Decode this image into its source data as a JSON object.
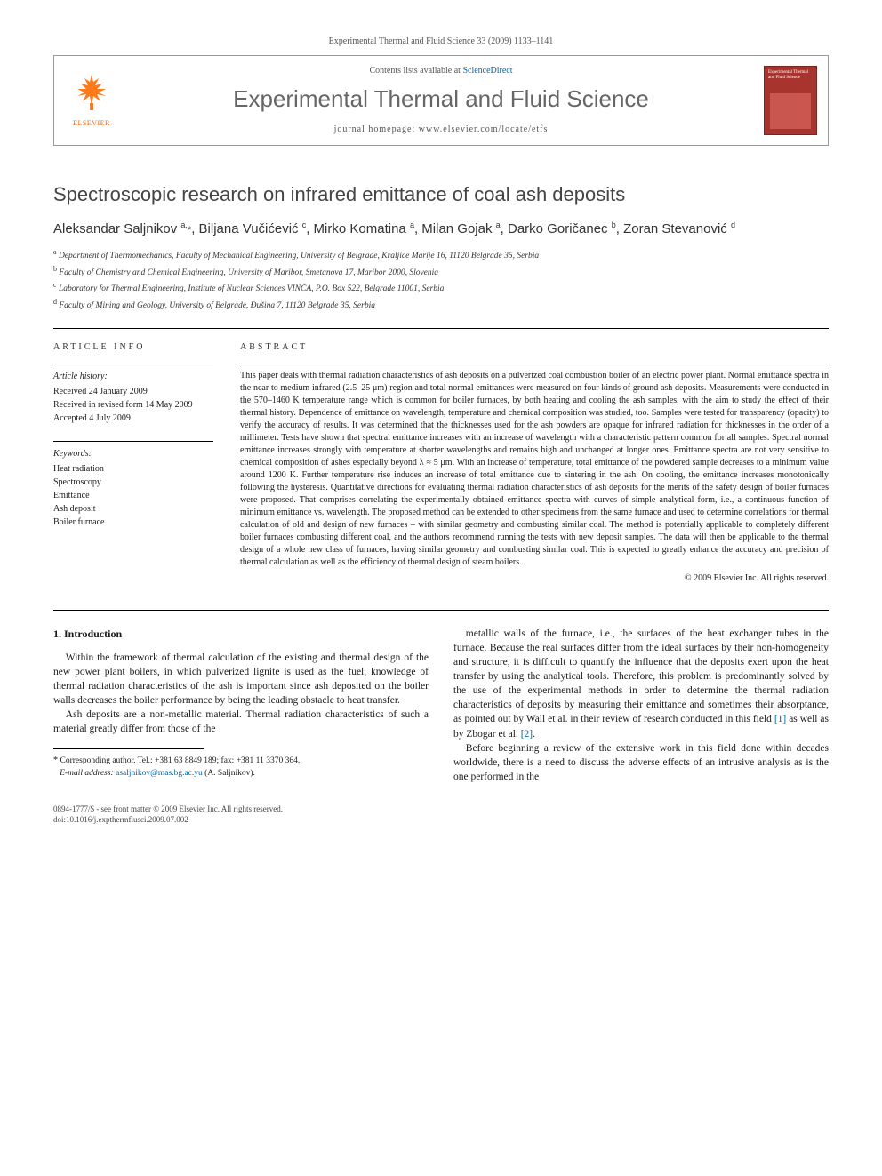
{
  "header": {
    "citation": "Experimental Thermal and Fluid Science 33 (2009) 1133–1141",
    "contents_prefix": "Contents lists available at ",
    "contents_link": "ScienceDirect",
    "journal_title": "Experimental Thermal and Fluid Science",
    "homepage_prefix": "journal homepage: ",
    "homepage_url": "www.elsevier.com/locate/etfs",
    "publisher_label": "ELSEVIER",
    "cover_label": "Experimental Thermal and Fluid Science",
    "logo_fill": "#ff7a1a"
  },
  "article": {
    "title": "Spectroscopic research on infrared emittance of coal ash deposits",
    "authors_html": "Aleksandar Saljnikov <sup>a,</sup><span class='star'>*</span>, Biljana Vučićević <sup>c</sup>, Mirko Komatina <sup>a</sup>, Milan Gojak <sup>a</sup>, Darko Goričanec <sup>b</sup>, Zoran Stevanović <sup>d</sup>",
    "affiliations": [
      "<sup>a</sup> Department of Thermomechanics, Faculty of Mechanical Engineering, University of Belgrade, Kraljice Marije 16, 11120 Belgrade 35, Serbia",
      "<sup>b</sup> Faculty of Chemistry and Chemical Engineering, University of Maribor, Smetanova 17, Maribor 2000, Slovenia",
      "<sup>c</sup> Laboratory for Thermal Engineering, Institute of Nuclear Sciences VINČA, P.O. Box 522, Belgrade 11001, Serbia",
      "<sup>d</sup> Faculty of Mining and Geology, University of Belgrade, Đušina 7, 11120 Belgrade 35, Serbia"
    ]
  },
  "info": {
    "section_label": "ARTICLE INFO",
    "history_label": "Article history:",
    "history": [
      "Received 24 January 2009",
      "Received in revised form 14 May 2009",
      "Accepted 4 July 2009"
    ],
    "keywords_label": "Keywords:",
    "keywords": [
      "Heat radiation",
      "Spectroscopy",
      "Emittance",
      "Ash deposit",
      "Boiler furnace"
    ]
  },
  "abstract": {
    "section_label": "ABSTRACT",
    "text": "This paper deals with thermal radiation characteristics of ash deposits on a pulverized coal combustion boiler of an electric power plant. Normal emittance spectra in the near to medium infrared (2.5–25 μm) region and total normal emittances were measured on four kinds of ground ash deposits. Measurements were conducted in the 570–1460 K temperature range which is common for boiler furnaces, by both heating and cooling the ash samples, with the aim to study the effect of their thermal history. Dependence of emittance on wavelength, temperature and chemical composition was studied, too. Samples were tested for transparency (opacity) to verify the accuracy of results. It was determined that the thicknesses used for the ash powders are opaque for infrared radiation for thicknesses in the order of a millimeter. Tests have shown that spectral emittance increases with an increase of wavelength with a characteristic pattern common for all samples. Spectral normal emittance increases strongly with temperature at shorter wavelengths and remains high and unchanged at longer ones. Emittance spectra are not very sensitive to chemical composition of ashes especially beyond λ ≈ 5 μm. With an increase of temperature, total emittance of the powdered sample decreases to a minimum value around 1200 K. Further temperature rise induces an increase of total emittance due to sintering in the ash. On cooling, the emittance increases monotonically following the hysteresis. Quantitative directions for evaluating thermal radiation characteristics of ash deposits for the merits of the safety design of boiler furnaces were proposed. That comprises correlating the experimentally obtained emittance spectra with curves of simple analytical form, i.e., a continuous function of minimum emittance vs. wavelength. The proposed method can be extended to other specimens from the same furnace and used to determine correlations for thermal calculation of old and design of new furnaces – with similar geometry and combusting similar coal. The method is potentially applicable to completely different boiler furnaces combusting different coal, and the authors recommend running the tests with new deposit samples. The data will then be applicable to the thermal design of a whole new class of furnaces, having similar geometry and combusting similar coal. This is expected to greatly enhance the accuracy and precision of thermal calculation as well as the efficiency of thermal design of steam boilers.",
    "copyright": "© 2009 Elsevier Inc. All rights reserved."
  },
  "body": {
    "heading": "1. Introduction",
    "p1": "Within the framework of thermal calculation of the existing and thermal design of the new power plant boilers, in which pulverized lignite is used as the fuel, knowledge of thermal radiation characteristics of the ash is important since ash deposited on the boiler walls decreases the boiler performance by being the leading obstacle to heat transfer.",
    "p2": "Ash deposits are a non-metallic material. Thermal radiation characteristics of such a material greatly differ from those of the",
    "p3": "metallic walls of the furnace, i.e., the surfaces of the heat exchanger tubes in the furnace. Because the real surfaces differ from the ideal surfaces by their non-homogeneity and structure, it is difficult to quantify the influence that the deposits exert upon the heat transfer by using the analytical tools. Therefore, this problem is predominantly solved by the use of the experimental methods in order to determine the thermal radiation characteristics of deposits by measuring their emittance and sometimes their absorptance, as pointed out by Wall et al. in their review of research conducted in this field [1] as well as by Zbogar et al. [2].",
    "p4": "Before beginning a review of the extensive work in this field done within decades worldwide, there is a need to discuss the adverse effects of an intrusive analysis as is the one performed in the"
  },
  "footnote": {
    "corr": "Corresponding author. Tel.: +381 63 8849 189; fax: +381 11 3370 364.",
    "email_label": "E-mail address:",
    "email": "asaljnikov@mas.bg.ac.yu",
    "email_tail": "(A. Saljnikov)."
  },
  "footer": {
    "left1": "0894-1777/$ - see front matter © 2009 Elsevier Inc. All rights reserved.",
    "left2": "doi:10.1016/j.expthermflusci.2009.07.002"
  },
  "colors": {
    "link": "#0066aa",
    "elsevier_orange": "#ff6600",
    "cover_bg": "#a8342f",
    "title_gray": "#666666",
    "rule": "#000000"
  }
}
